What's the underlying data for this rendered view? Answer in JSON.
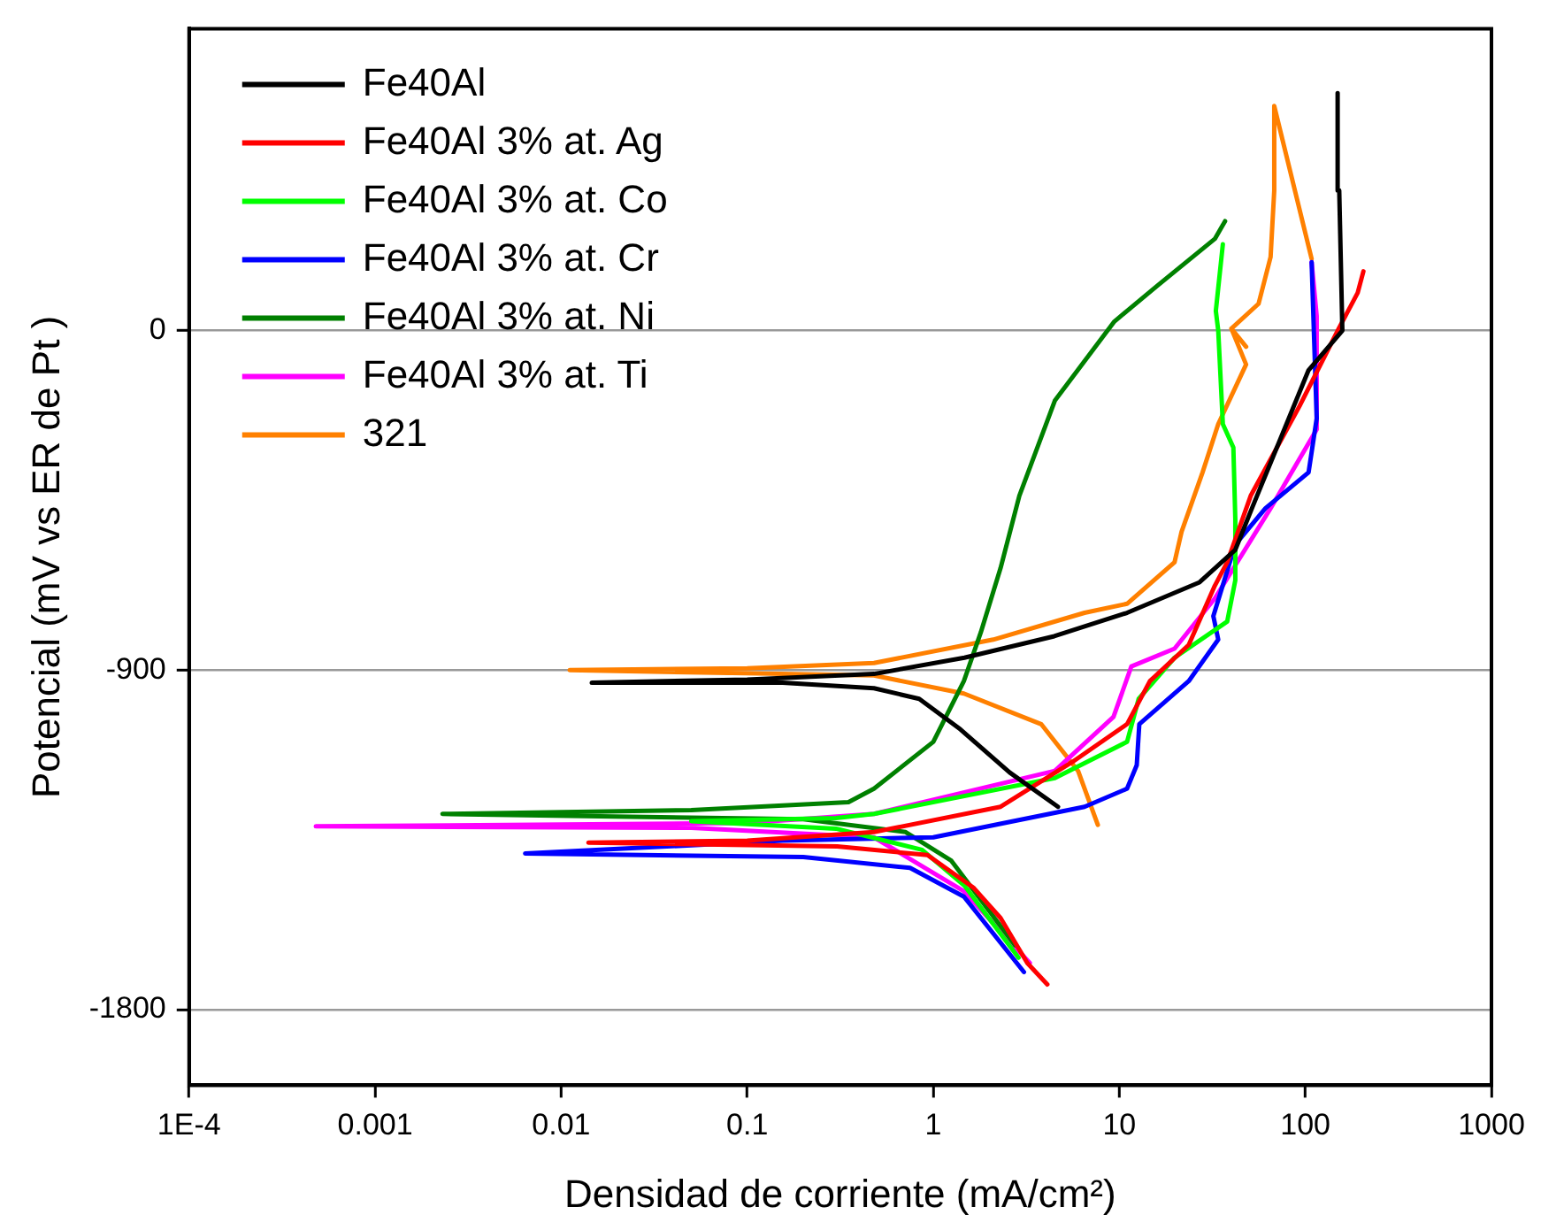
{
  "chart_data": {
    "type": "line",
    "xlabel": "Densidad de corriente (mA/cm²)",
    "ylabel": "Potencial (mV vs ER de Pt )",
    "log": "x",
    "grid": "y",
    "legend": "top left",
    "marker": "none",
    "line_style": "solid",
    "xlim": [
      0.0001,
      1000
    ],
    "xticks": [
      {
        "value": 0.0001,
        "label": "1E-4"
      },
      0.001,
      0.01,
      0.1,
      1,
      10,
      100,
      1000
    ],
    "ylim": [
      -2000,
      800
    ],
    "yticks": [
      -1800,
      -900,
      0
    ],
    "series": [
      {
        "name": "Fe40Al",
        "color": "#000000",
        "x": [
          4.68,
          2.57,
          1.4,
          0.84,
          0.48,
          0.155,
          0.0146,
          0.1,
          0.48,
          1.47,
          4.47,
          11,
          27,
          42,
          52,
          104,
          158,
          152,
          149
        ],
        "values": [
          -1262,
          -1171,
          -1057,
          -976,
          -948,
          -933,
          -933,
          -925,
          -910,
          -867,
          -810,
          -748,
          -667,
          -581,
          -467,
          -105,
          0,
          371,
          629
        ]
      },
      {
        "name": "Fe40Al 3% at. Ag",
        "color": "#ff0000",
        "x": [
          4.1,
          3.2,
          2.3,
          1.64,
          0.93,
          0.304,
          0.014,
          0.1,
          0.48,
          2.3,
          5.6,
          11,
          14.6,
          23.6,
          32.6,
          38,
          50.8,
          93,
          151,
          191,
          205
        ],
        "values": [
          -1733,
          -1676,
          -1557,
          -1476,
          -1390,
          -1367,
          -1357,
          -1352,
          -1329,
          -1262,
          -1143,
          -1043,
          -929,
          -833,
          -676,
          -614,
          -438,
          -200,
          5,
          100,
          157
        ]
      },
      {
        "name": "Fe40Al 3% at. Co",
        "color": "#00ff00",
        "x": [
          2.87,
          1.47,
          0.87,
          0.3,
          0.05,
          0.3,
          0.48,
          4.5,
          11,
          12.7,
          19.8,
          38,
          42,
          42,
          41,
          36,
          34,
          33,
          36
        ],
        "values": [
          -1662,
          -1471,
          -1376,
          -1320,
          -1300,
          -1292,
          -1281,
          -1186,
          -1090,
          -976,
          -867,
          -771,
          -662,
          -500,
          -310,
          -248,
          0,
          52,
          229
        ]
      },
      {
        "name": "Fe40Al 3% at. Cr",
        "color": "#0000ff",
        "x": [
          3.07,
          1.46,
          0.75,
          0.2,
          0.0064,
          0.155,
          1,
          6.5,
          11,
          12.4,
          12.8,
          23.6,
          34,
          32,
          42,
          61,
          104,
          115,
          108
        ],
        "values": [
          -1700,
          -1500,
          -1424,
          -1395,
          -1386,
          -1352,
          -1343,
          -1262,
          -1214,
          -1152,
          -1043,
          -929,
          -819,
          -757,
          -567,
          -471,
          -376,
          -233,
          181
        ]
      },
      {
        "name": "Fe40Al 3% at. Ni",
        "color": "#008000",
        "x": [
          2.75,
          1.25,
          0.71,
          0.2,
          0.0023,
          0.05,
          0.35,
          0.48,
          1,
          1.46,
          1.8,
          2.3,
          2.9,
          4.5,
          9.4,
          16,
          32.6,
          37
        ],
        "values": [
          -1629,
          -1405,
          -1329,
          -1295,
          -1281,
          -1271,
          -1250,
          -1214,
          -1090,
          -929,
          -800,
          -629,
          -438,
          -186,
          24,
          119,
          243,
          290
        ]
      },
      {
        "name": "Fe40Al 3% at. Ti",
        "color": "#ff00ff",
        "x": [
          3.3,
          1.46,
          0.48,
          0.05,
          0.00048,
          0.1,
          0.48,
          4.5,
          9.3,
          11.6,
          19.8,
          32.6,
          65,
          115,
          115,
          108
        ],
        "values": [
          -1676,
          -1486,
          -1343,
          -1318,
          -1314,
          -1305,
          -1281,
          -1167,
          -1024,
          -890,
          -843,
          -710,
          -471,
          -262,
          38,
          181
        ]
      },
      {
        "name": "321",
        "color": "#ff8000",
        "x": [
          7.66,
          6,
          3.8,
          1.46,
          0.48,
          0.0111,
          0.1,
          0.48,
          2.1,
          6.5,
          11,
          19.8,
          21.6,
          28,
          34,
          48,
          40,
          48,
          40,
          56,
          65,
          68,
          68,
          108
        ],
        "values": [
          -1310,
          -1167,
          -1043,
          -962,
          -914,
          -900,
          -895,
          -881,
          -819,
          -748,
          -724,
          -614,
          -533,
          -376,
          -248,
          -90,
          5,
          -43,
          5,
          71,
          195,
          371,
          595,
          190
        ]
      }
    ]
  }
}
